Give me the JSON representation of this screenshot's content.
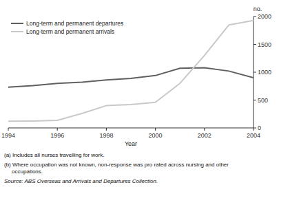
{
  "chart_data": {
    "type": "line",
    "x_label": "Year",
    "y_label": "no.",
    "x": [
      1994,
      1995,
      1996,
      1997,
      1998,
      1999,
      2000,
      2001,
      2002,
      2003,
      2004
    ],
    "series": [
      {
        "name": "Long-term and permanent departures",
        "color": "#606060",
        "values": [
          730,
          760,
          800,
          820,
          860,
          890,
          940,
          1070,
          1080,
          1020,
          900
        ]
      },
      {
        "name": "Long-term and permanent arrivals",
        "color": "#c8c8c8",
        "values": [
          120,
          125,
          135,
          260,
          400,
          420,
          460,
          800,
          1300,
          1850,
          1930
        ]
      }
    ],
    "xlim": [
      1994,
      2004
    ],
    "ylim": [
      0,
      2000
    ],
    "xticks": [
      1994,
      1996,
      1998,
      2000,
      2002,
      2004
    ],
    "yticks": [
      0,
      500,
      1000,
      1500,
      2000
    ],
    "grid": false,
    "legend": "upper left",
    "annotations": [
      "(a) Includes all nurses travelling for work.",
      "(b) Where occupation was not known, non-response was pro rated across nursing and other\n     occupations.",
      "Source: ABS Overseas and Arrivals and Departures Collection."
    ]
  }
}
